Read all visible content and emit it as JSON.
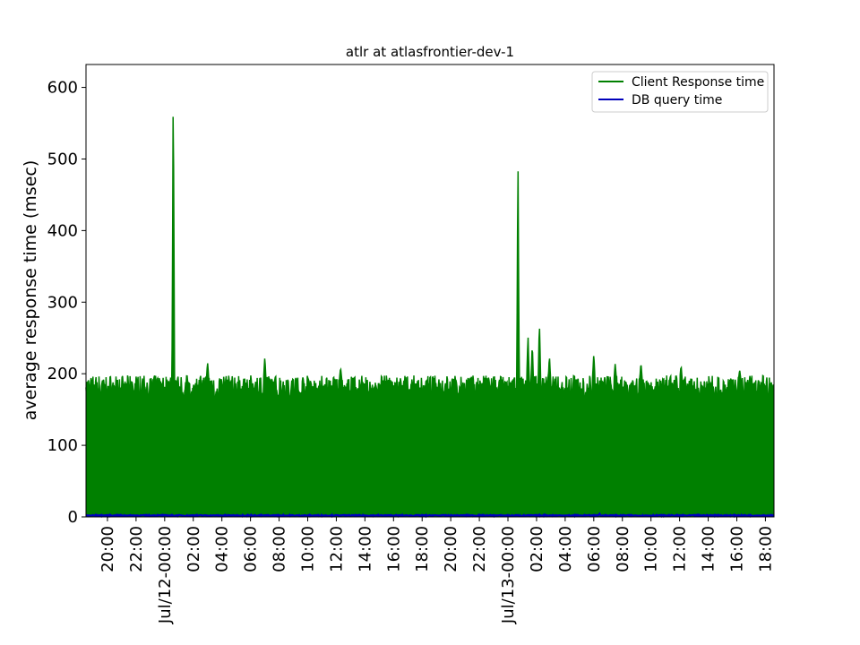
{
  "chart_data": {
    "type": "area",
    "title": "atlr at atlasfrontier-dev-1",
    "ylabel": "average response time (msec)",
    "xlabel": "",
    "ylim": [
      0,
      632
    ],
    "xlim_hours": [
      -5.5,
      42.6
    ],
    "x_ticks": [
      {
        "label": "20:00",
        "hour": -4
      },
      {
        "label": "22:00",
        "hour": -2
      },
      {
        "label": "Jul/12-00:00",
        "hour": 0
      },
      {
        "label": "02:00",
        "hour": 2
      },
      {
        "label": "04:00",
        "hour": 4
      },
      {
        "label": "06:00",
        "hour": 6
      },
      {
        "label": "08:00",
        "hour": 8
      },
      {
        "label": "10:00",
        "hour": 10
      },
      {
        "label": "12:00",
        "hour": 12
      },
      {
        "label": "14:00",
        "hour": 14
      },
      {
        "label": "16:00",
        "hour": 16
      },
      {
        "label": "18:00",
        "hour": 18
      },
      {
        "label": "20:00",
        "hour": 20
      },
      {
        "label": "22:00",
        "hour": 22
      },
      {
        "label": "Jul/13-00:00",
        "hour": 24
      },
      {
        "label": "02:00",
        "hour": 26
      },
      {
        "label": "04:00",
        "hour": 28
      },
      {
        "label": "06:00",
        "hour": 30
      },
      {
        "label": "08:00",
        "hour": 32
      },
      {
        "label": "10:00",
        "hour": 34
      },
      {
        "label": "12:00",
        "hour": 36
      },
      {
        "label": "14:00",
        "hour": 38
      },
      {
        "label": "16:00",
        "hour": 40
      },
      {
        "label": "18:00",
        "hour": 42
      }
    ],
    "y_ticks": [
      0,
      100,
      200,
      300,
      400,
      500,
      600
    ],
    "legend_position": "top-right",
    "series": [
      {
        "name": "Client Response time",
        "color": "#008000",
        "fill": true,
        "baseline": 190,
        "spikes": [
          {
            "hour": 0.6,
            "value": 605
          },
          {
            "hour": 3.0,
            "value": 216
          },
          {
            "hour": 7.0,
            "value": 223
          },
          {
            "hour": 12.3,
            "value": 209
          },
          {
            "hour": 24.7,
            "value": 500
          },
          {
            "hour": 25.4,
            "value": 254
          },
          {
            "hour": 25.7,
            "value": 241
          },
          {
            "hour": 26.2,
            "value": 272
          },
          {
            "hour": 26.9,
            "value": 225
          },
          {
            "hour": 30.0,
            "value": 229
          },
          {
            "hour": 31.5,
            "value": 215
          },
          {
            "hour": 33.3,
            "value": 216
          },
          {
            "hour": 36.1,
            "value": 212
          },
          {
            "hour": 40.2,
            "value": 206
          }
        ]
      },
      {
        "name": "DB query time",
        "color": "#0000bb",
        "fill": false,
        "baseline": 2,
        "spikes": [
          {
            "hour": 30.4,
            "value": 5
          }
        ]
      }
    ]
  }
}
